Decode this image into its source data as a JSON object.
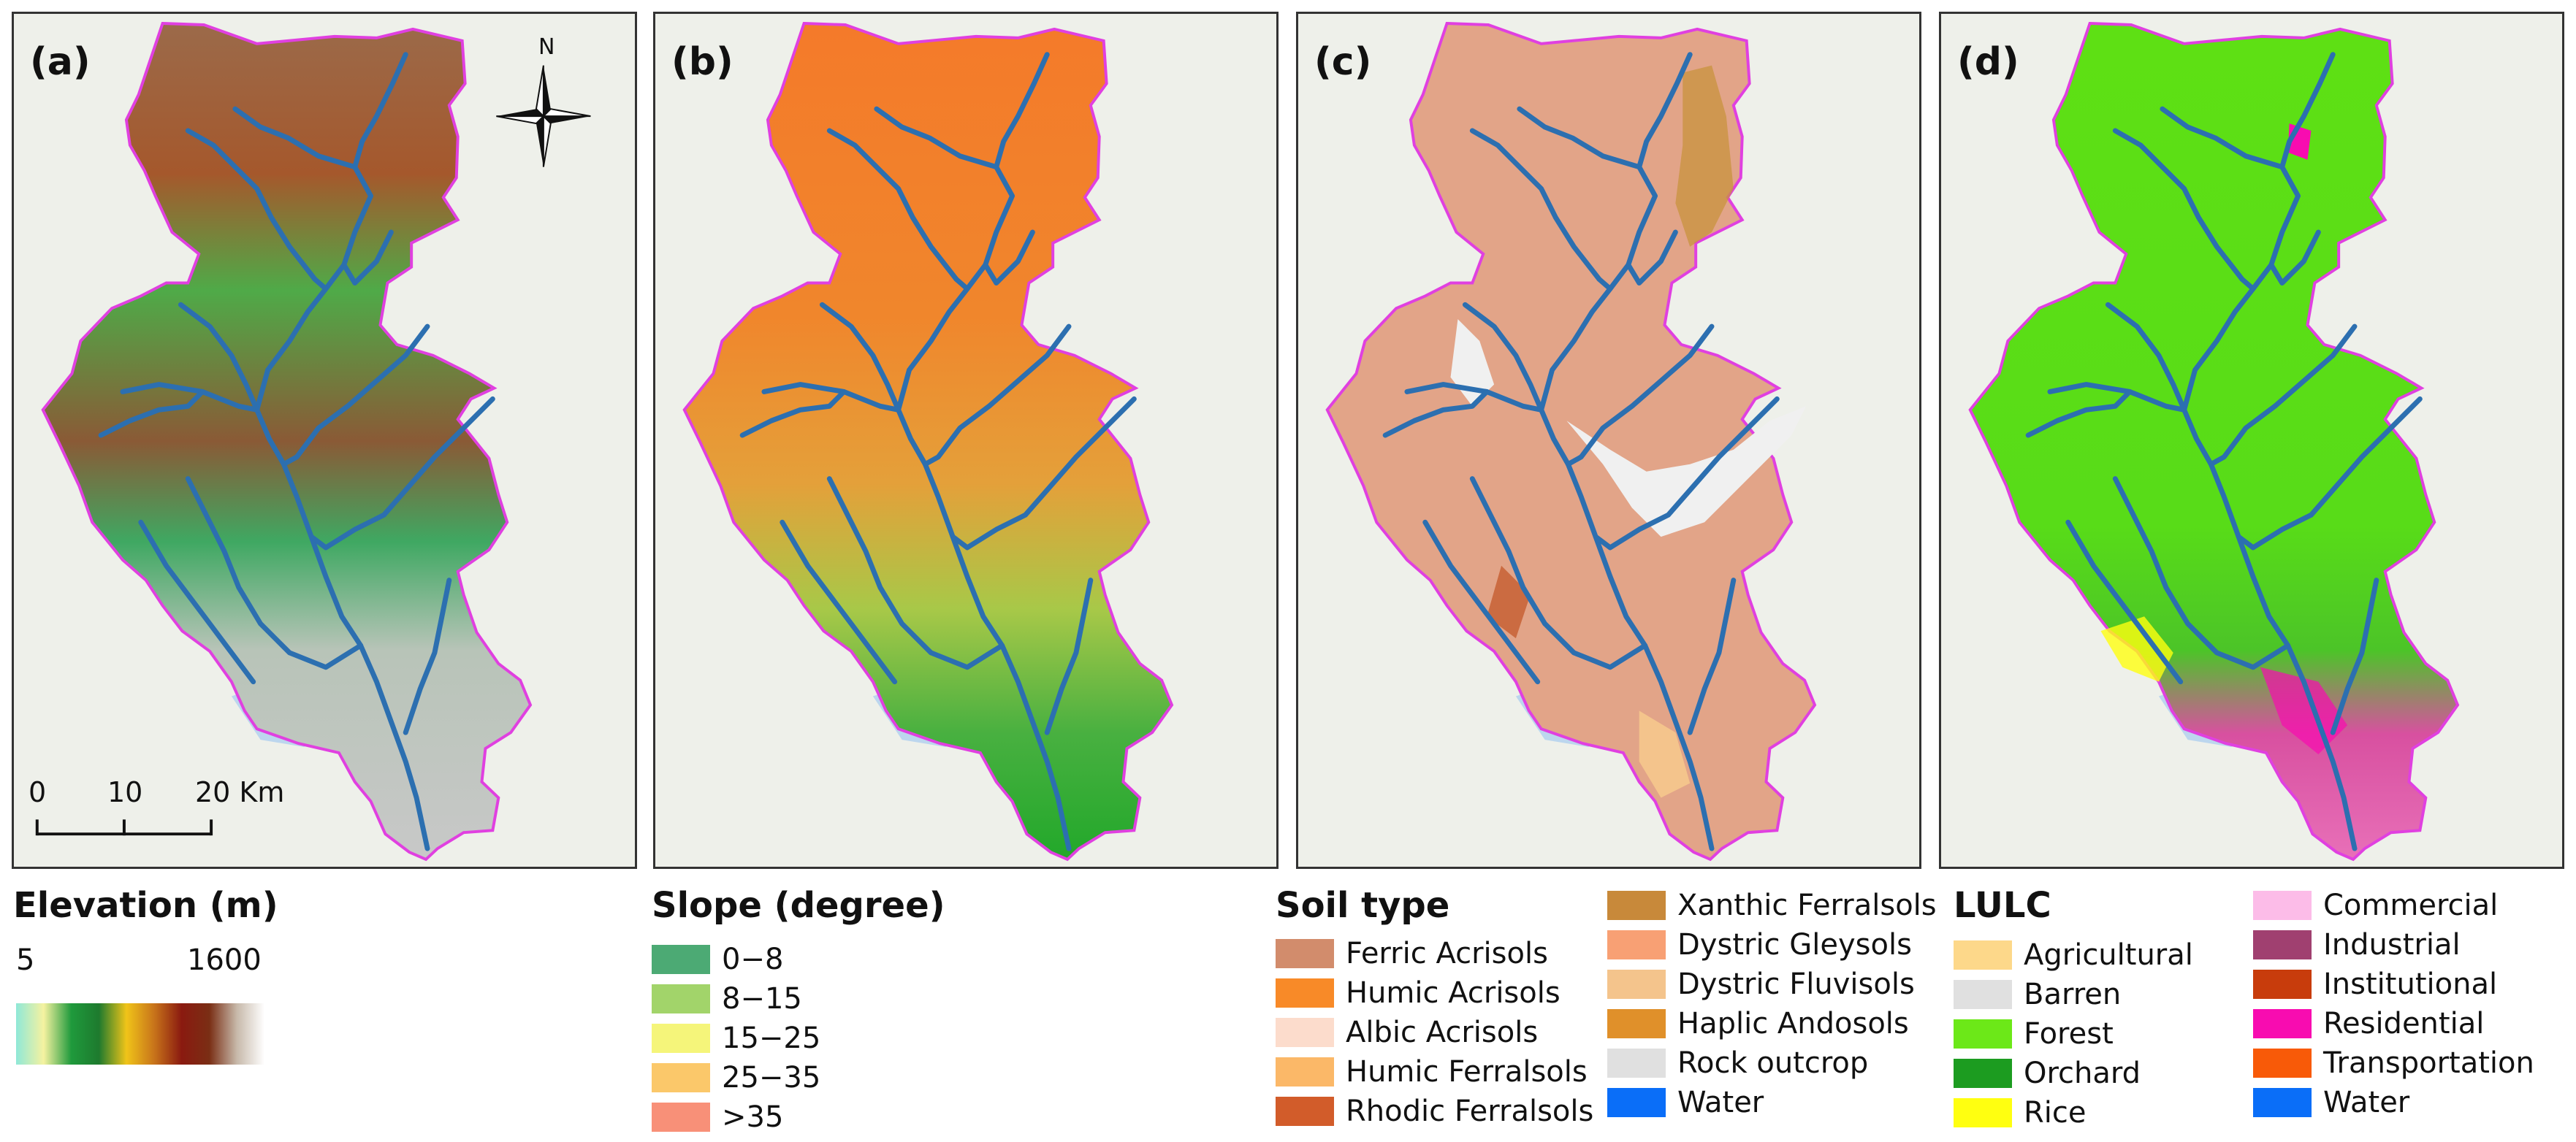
{
  "panels": [
    {
      "label": "(a)"
    },
    {
      "label": "(b)"
    },
    {
      "label": "(c)"
    },
    {
      "label": "(d)"
    }
  ],
  "north_arrow": {
    "label": "N"
  },
  "scale_bar": {
    "labels": [
      "0",
      "10",
      "20 Km"
    ]
  },
  "legends": {
    "elevation": {
      "title": "Elevation (m)",
      "min": "5",
      "max": "1600",
      "ramp_colors": [
        "#8fe8d8",
        "#f5f2a0",
        "#1f9a3c",
        "#1e7a2e",
        "#f0c419",
        "#c8741a",
        "#8a1a10",
        "#7a2e14",
        "#c7b9aa",
        "#ffffff"
      ]
    },
    "slope": {
      "title": "Slope (degree)",
      "items": [
        {
          "label": "0−8",
          "color": "#4caa74"
        },
        {
          "label": "8−15",
          "color": "#a2d46a"
        },
        {
          "label": "15−25",
          "color": "#f5f57a"
        },
        {
          "label": "25−35",
          "color": "#fbc86a"
        },
        {
          "label": ">35",
          "color": "#f89078"
        }
      ]
    },
    "soil": {
      "title": "Soil type",
      "items": [
        {
          "label": "Ferric Acrisols",
          "color": "#d28c6c"
        },
        {
          "label": "Humic Acrisols",
          "color": "#f88a28"
        },
        {
          "label": "Albic Acrisols",
          "color": "#fcdccc"
        },
        {
          "label": "Humic Ferralsols",
          "color": "#fbb868"
        },
        {
          "label": "Rhodic Ferralsols",
          "color": "#d25c2a"
        },
        {
          "label": "Xanthic Ferralsols",
          "color": "#c8893a"
        },
        {
          "label": "Dystric Gleysols",
          "color": "#f8a074"
        },
        {
          "label": "Dystric Fluvisols",
          "color": "#f4c48c"
        },
        {
          "label": "Haplic Andosols",
          "color": "#e0902a"
        },
        {
          "label": "Rock outcrop",
          "color": "#e0e0e0"
        },
        {
          "label": "Water",
          "color": "#0a6ef8"
        }
      ]
    },
    "lulc": {
      "title": "LULC",
      "items": [
        {
          "label": "Agricultural",
          "color": "#fdd88a"
        },
        {
          "label": "Barren",
          "color": "#e0e0e0"
        },
        {
          "label": "Forest",
          "color": "#6ce818"
        },
        {
          "label": "Orchard",
          "color": "#1c9c20"
        },
        {
          "label": "Rice",
          "color": "#ffff10"
        },
        {
          "label": "Commercial",
          "color": "#fcbce8"
        },
        {
          "label": "Industrial",
          "color": "#a04070"
        },
        {
          "label": "Institutional",
          "color": "#c83c0c"
        },
        {
          "label": "Residential",
          "color": "#f80cb0"
        },
        {
          "label": "Transportation",
          "color": "#f85a08"
        },
        {
          "label": "Water",
          "color": "#0a6ef8"
        }
      ]
    }
  },
  "colors": {
    "boundary": "#e040e0",
    "river": "#2c6fb0",
    "basemap": "#eef0ea",
    "lake": "#bcd6ee"
  }
}
